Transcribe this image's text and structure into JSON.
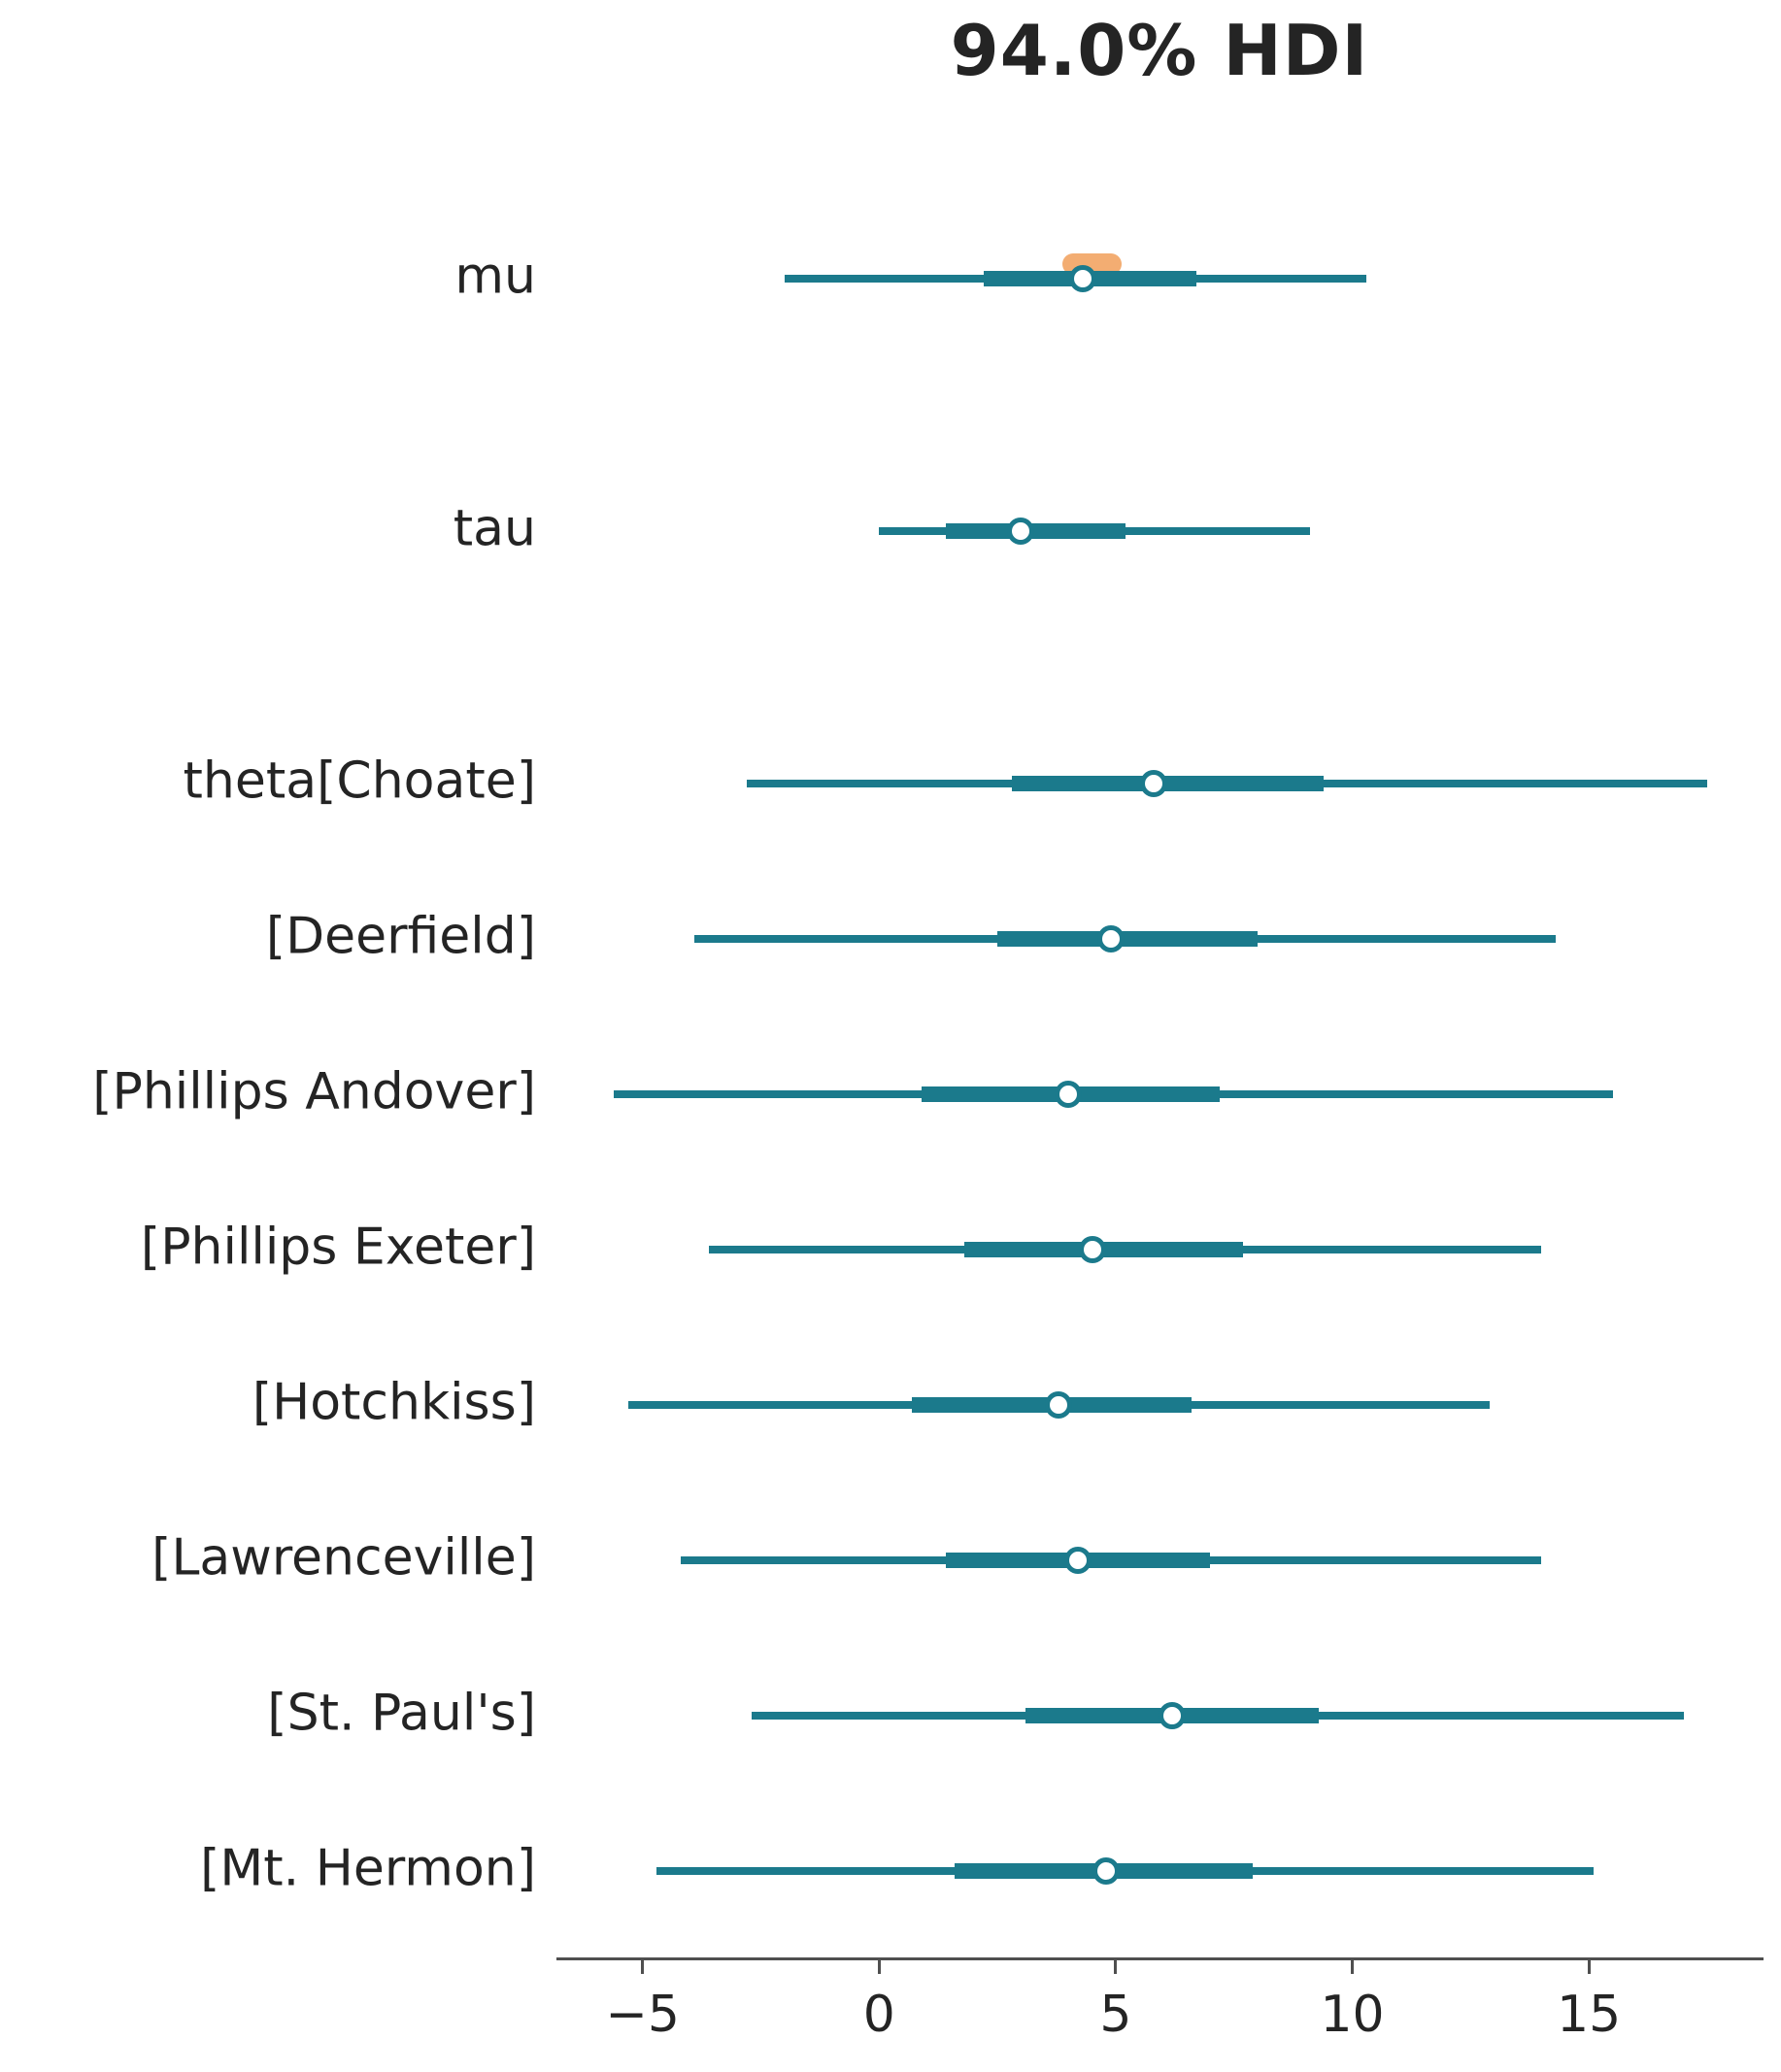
{
  "title": "94.0% HDI",
  "colors": {
    "interval": "#1b7a8c",
    "rope": "#f3ad72",
    "marker_fill": "#ffffff",
    "text": "#242424",
    "axis": "#4f4f4f"
  },
  "chart_data": {
    "type": "forest",
    "title": "94.0% HDI",
    "xlabel": "",
    "xlim": [
      -6.8,
      18.65
    ],
    "xticks": [
      -5,
      0,
      5,
      10,
      15
    ],
    "xtick_labels": [
      "−5",
      "0",
      "5",
      "10",
      "15"
    ],
    "grid": false,
    "legend": "none",
    "interval_level": "94% HDI (thin line), interquartile range (thick line), median (circle marker)",
    "rows": [
      {
        "label": "mu",
        "hdi_94": [
          -2.0,
          10.3
        ],
        "iqr": [
          2.2,
          6.7
        ],
        "median": 4.3,
        "rope": [
          4.0,
          5.0
        ]
      },
      {
        "label": "tau",
        "hdi_94": [
          0.0,
          9.1
        ],
        "iqr": [
          1.4,
          5.2
        ],
        "median": 3.0,
        "rope": null
      },
      {
        "label": "theta[Choate]",
        "hdi_94": [
          -2.8,
          17.5
        ],
        "iqr": [
          2.8,
          9.4
        ],
        "median": 5.8,
        "rope": null
      },
      {
        "label": "[Deerfield]",
        "hdi_94": [
          -3.9,
          14.3
        ],
        "iqr": [
          2.5,
          8.0
        ],
        "median": 4.9,
        "rope": null
      },
      {
        "label": "[Phillips Andover]",
        "hdi_94": [
          -5.6,
          15.5
        ],
        "iqr": [
          0.9,
          7.2
        ],
        "median": 4.0,
        "rope": null
      },
      {
        "label": "[Phillips Exeter]",
        "hdi_94": [
          -3.6,
          14.0
        ],
        "iqr": [
          1.8,
          7.7
        ],
        "median": 4.5,
        "rope": null
      },
      {
        "label": "[Hotchkiss]",
        "hdi_94": [
          -5.3,
          12.9
        ],
        "iqr": [
          0.7,
          6.6
        ],
        "median": 3.8,
        "rope": null
      },
      {
        "label": "[Lawrenceville]",
        "hdi_94": [
          -4.2,
          14.0
        ],
        "iqr": [
          1.4,
          7.0
        ],
        "median": 4.2,
        "rope": null
      },
      {
        "label": "[St. Paul's]",
        "hdi_94": [
          -2.7,
          17.0
        ],
        "iqr": [
          3.1,
          9.3
        ],
        "median": 6.2,
        "rope": null
      },
      {
        "label": "[Mt. Hermon]",
        "hdi_94": [
          -4.7,
          15.1
        ],
        "iqr": [
          1.6,
          7.9
        ],
        "median": 4.8,
        "rope": null
      }
    ]
  }
}
